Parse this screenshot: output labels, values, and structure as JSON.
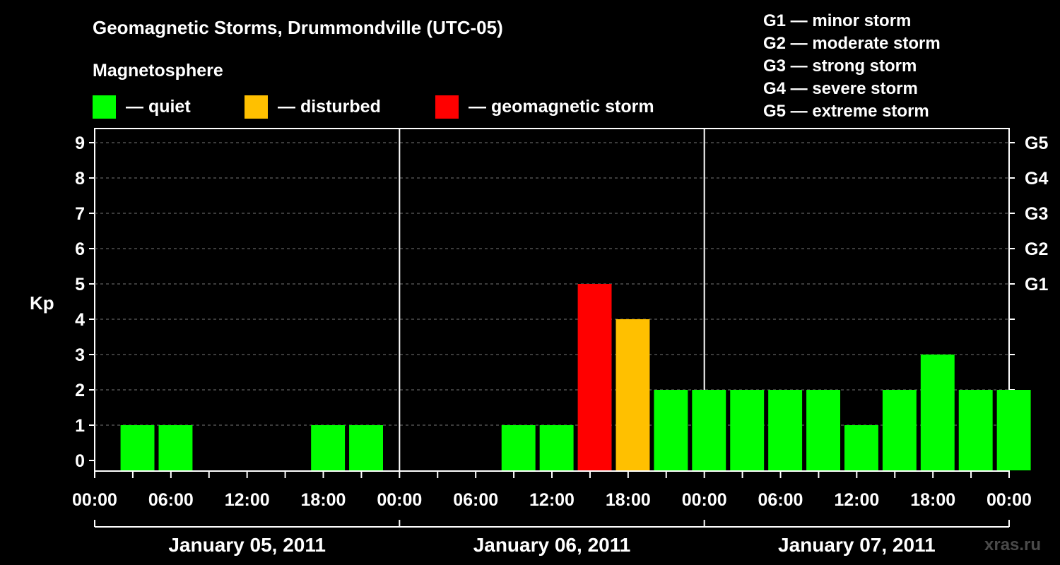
{
  "title": "Geomagnetic Storms, Drummondville (UTC-05)",
  "subtitle": "Magnetosphere",
  "legend": [
    {
      "color": "#00ff00",
      "label": "— quiet"
    },
    {
      "color": "#ffc000",
      "label": "— disturbed"
    },
    {
      "color": "#ff0000",
      "label": "— geomagnetic storm"
    }
  ],
  "g_scale": [
    "G1 — minor storm",
    "G2 — moderate storm",
    "G3 — strong storm",
    "G4 — severe storm",
    "G5 — extreme storm"
  ],
  "watermark": "xras.ru",
  "chart_data": {
    "type": "bar",
    "ylabel": "Kp",
    "ylim": [
      0,
      9
    ],
    "y_ticks": [
      0,
      1,
      2,
      3,
      4,
      5,
      6,
      7,
      8,
      9
    ],
    "right_axis_labels": [
      {
        "kp": 5,
        "label": "G1"
      },
      {
        "kp": 6,
        "label": "G2"
      },
      {
        "kp": 7,
        "label": "G3"
      },
      {
        "kp": 8,
        "label": "G4"
      },
      {
        "kp": 9,
        "label": "G5"
      }
    ],
    "x_tick_labels": [
      "00:00",
      "06:00",
      "12:00",
      "18:00",
      "00:00",
      "06:00",
      "12:00",
      "18:00",
      "00:00",
      "06:00",
      "12:00",
      "18:00",
      "00:00"
    ],
    "days": [
      "January 05, 2011",
      "January 06, 2011",
      "January 07, 2011"
    ],
    "bar_hours": 3,
    "values": [
      0,
      1,
      1,
      0,
      0,
      0,
      1,
      1,
      0,
      0,
      0,
      1,
      1,
      5,
      4,
      2,
      2,
      2,
      2,
      2,
      1,
      2,
      3,
      2,
      2
    ],
    "colors": {
      "quiet": "#00ff00",
      "disturbed": "#ffc000",
      "storm": "#ff0000"
    },
    "thresholds": {
      "disturbed": 4,
      "storm": 5
    },
    "grid": "dashed horizontal",
    "legend_placement": "top"
  }
}
